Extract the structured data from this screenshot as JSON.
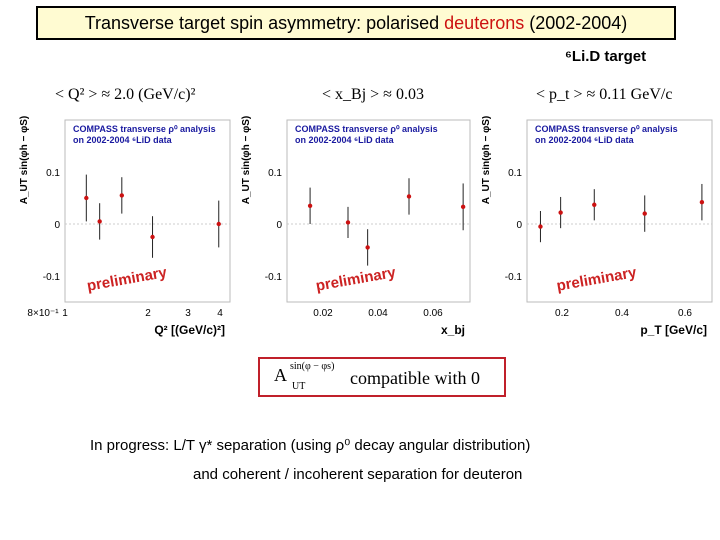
{
  "title": {
    "prefix": "Transverse target spin asymmetry:   polarised ",
    "highlight": "deuterons",
    "suffix": " (2002-2004)"
  },
  "target_label": "⁶Li.D target",
  "conditions": [
    "< Q² > ≈ 2.0 (GeV/c)²",
    "< x_Bj > ≈ 0.03",
    "< p_t > ≈ 0.11 GeV/c"
  ],
  "compatible_box": {
    "symbol": "A",
    "superscript": "sin(φ − φs)",
    "subscript": "UT",
    "text": "compatible with  0"
  },
  "notes": [
    "In progress:  L/T γ* separation  (using ρ⁰ decay angular distribution)",
    "and coherent / incoherent separation for deuteron"
  ],
  "colors": {
    "title_bg": "#fffbd2",
    "highlight": "#cc1111",
    "analysis_label": "#1a1aa0",
    "preliminary": "#cc2222",
    "point": "#cc1111",
    "box_border": "#c0202a"
  },
  "chart_data": [
    {
      "type": "scatter",
      "label": "COMPASS transverse ρ⁰ analysis on 2002-2004 ⁶LiD data",
      "watermark": "preliminary",
      "ylabel": "A_UT sin(φh − φS)",
      "xlabel": "Q² [(GeV/c)²]",
      "xscale": "log",
      "xlim": [
        0.8,
        4.5
      ],
      "ylim": [
        -0.15,
        0.2
      ],
      "x_ticks": [
        "8×10⁻¹",
        "1",
        "2",
        "3",
        "4"
      ],
      "y_ticks": [
        "0.1",
        "0",
        "-0.1"
      ],
      "points": [
        {
          "x": 1.0,
          "y": 0.05,
          "err": 0.045
        },
        {
          "x": 1.15,
          "y": 0.005,
          "err": 0.035
        },
        {
          "x": 1.45,
          "y": 0.055,
          "err": 0.035
        },
        {
          "x": 2.0,
          "y": -0.025,
          "err": 0.04
        },
        {
          "x": 4.0,
          "y": 0.0,
          "err": 0.045
        }
      ]
    },
    {
      "type": "scatter",
      "label": "COMPASS transverse ρ⁰ analysis on 2002-2004 ⁶LiD data",
      "watermark": "preliminary",
      "ylabel": "A_UT sin(φh − φS)",
      "xlabel": "x_bj",
      "xscale": "log",
      "xlim": [
        0.01,
        0.08
      ],
      "ylim": [
        -0.15,
        0.2
      ],
      "x_ticks": [
        "0.02",
        "0.04",
        "0.06"
      ],
      "y_ticks": [
        "0.1",
        "0",
        "-0.1"
      ],
      "points": [
        {
          "x": 0.013,
          "y": 0.035,
          "err": 0.035
        },
        {
          "x": 0.02,
          "y": 0.003,
          "err": 0.03
        },
        {
          "x": 0.025,
          "y": -0.045,
          "err": 0.035
        },
        {
          "x": 0.04,
          "y": 0.053,
          "err": 0.035
        },
        {
          "x": 0.074,
          "y": 0.033,
          "err": 0.045
        }
      ]
    },
    {
      "type": "scatter",
      "label": "COMPASS transverse ρ⁰ analysis on 2002-2004 ⁶LiD data",
      "watermark": "preliminary",
      "ylabel": "A_UT sin(φh − φS)",
      "xlabel": "p_T [GeV/c]",
      "xscale": "linear",
      "xlim": [
        0.1,
        0.65
      ],
      "ylim": [
        -0.15,
        0.2
      ],
      "x_ticks": [
        "0.2",
        "0.4",
        "0.6"
      ],
      "y_ticks": [
        "0.1",
        "0",
        "-0.1"
      ],
      "points": [
        {
          "x": 0.14,
          "y": -0.005,
          "err": 0.03
        },
        {
          "x": 0.2,
          "y": 0.022,
          "err": 0.03
        },
        {
          "x": 0.3,
          "y": 0.037,
          "err": 0.03
        },
        {
          "x": 0.45,
          "y": 0.02,
          "err": 0.035
        },
        {
          "x": 0.62,
          "y": 0.042,
          "err": 0.035
        }
      ]
    }
  ]
}
